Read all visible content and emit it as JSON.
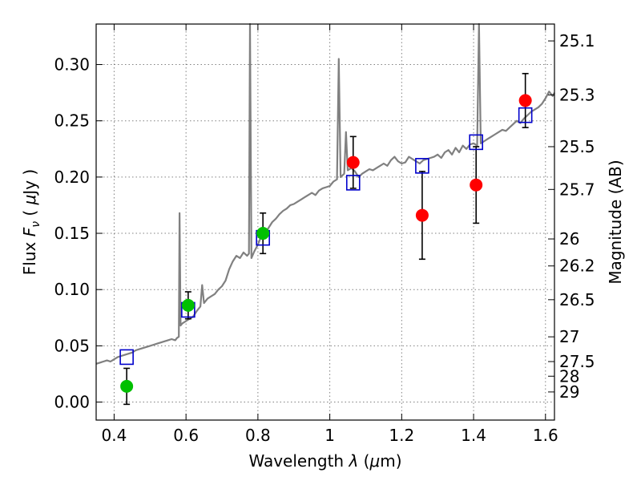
{
  "chart_data": {
    "type": "scatter",
    "title": "",
    "xlabel_prefix": "Wavelength ",
    "xlabel_symbol": "λ",
    "xlabel_unit_open": " (",
    "xlabel_unit_mu": "μ",
    "xlabel_unit_rest": "m)",
    "ylabel_prefix": "Flux  ",
    "ylabel_symbol": "F",
    "ylabel_subscript": "ν",
    "ylabel_unit_open": "  ( ",
    "ylabel_unit_mu": "μ",
    "ylabel_unit_rest": "Jy )",
    "y2label": "Magnitude (AB)",
    "xlim": [
      0.35,
      1.625
    ],
    "ylim": [
      -0.016,
      0.336
    ],
    "grid": true,
    "xticks": [
      0.4,
      0.6,
      0.8,
      1.0,
      1.2,
      1.4,
      1.6
    ],
    "xtick_labels": [
      "0.4",
      "0.6",
      "0.8",
      "1",
      "1.2",
      "1.4",
      "1.6"
    ],
    "yticks": [
      0.0,
      0.05,
      0.1,
      0.15,
      0.2,
      0.25,
      0.3
    ],
    "ytick_labels": [
      "0.00",
      "0.05",
      "0.10",
      "0.15",
      "0.20",
      "0.25",
      "0.30"
    ],
    "y2ticks": [
      {
        "flux": 0.321,
        "label": "25.1"
      },
      {
        "flux": 0.273,
        "label": "25.3"
      },
      {
        "flux": 0.227,
        "label": "25.5"
      },
      {
        "flux": 0.189,
        "label": "25.7"
      },
      {
        "flux": 0.145,
        "label": "26"
      },
      {
        "flux": 0.121,
        "label": "26.2"
      },
      {
        "flux": 0.091,
        "label": "26.5"
      },
      {
        "flux": 0.058,
        "label": "27"
      },
      {
        "flux": 0.036,
        "label": "27.5"
      },
      {
        "flux": 0.023,
        "label": "28"
      },
      {
        "flux": 0.009,
        "label": "29"
      }
    ],
    "colors": {
      "spectrum": "#808080",
      "green_points": "#00c000",
      "red_points": "#ff0000",
      "model_boxes": "#0000cc",
      "errorbars": "#000000",
      "grid": "#808080"
    },
    "series": [
      {
        "marker": "circle",
        "color": "#00c000",
        "points": [
          {
            "x": 0.435,
            "y": 0.014,
            "err": 0.016
          },
          {
            "x": 0.606,
            "y": 0.086,
            "err": 0.012
          },
          {
            "x": 0.814,
            "y": 0.15,
            "err": 0.018
          }
        ]
      },
      {
        "marker": "circle",
        "color": "#ff0000",
        "points": [
          {
            "x": 1.065,
            "y": 0.213,
            "err": 0.023
          },
          {
            "x": 1.257,
            "y": 0.166,
            "err": 0.039
          },
          {
            "x": 1.407,
            "y": 0.193,
            "err": 0.034
          },
          {
            "x": 1.544,
            "y": 0.268,
            "err": 0.024
          }
        ]
      },
      {
        "marker": "square",
        "color": "#0000cc",
        "points": [
          {
            "x": 0.435,
            "y": 0.04
          },
          {
            "x": 0.606,
            "y": 0.082
          },
          {
            "x": 0.814,
            "y": 0.146
          },
          {
            "x": 1.065,
            "y": 0.195
          },
          {
            "x": 1.257,
            "y": 0.21
          },
          {
            "x": 1.407,
            "y": 0.231
          },
          {
            "x": 1.544,
            "y": 0.255
          }
        ]
      },
      {
        "marker": "line",
        "color": "#808080",
        "points": [
          [
            0.35,
            0.034
          ],
          [
            0.36,
            0.035
          ],
          [
            0.37,
            0.036
          ],
          [
            0.38,
            0.037
          ],
          [
            0.39,
            0.036
          ],
          [
            0.4,
            0.038
          ],
          [
            0.41,
            0.04
          ],
          [
            0.42,
            0.041
          ],
          [
            0.43,
            0.042
          ],
          [
            0.44,
            0.043
          ],
          [
            0.45,
            0.044
          ],
          [
            0.46,
            0.046
          ],
          [
            0.47,
            0.047
          ],
          [
            0.48,
            0.048
          ],
          [
            0.49,
            0.049
          ],
          [
            0.5,
            0.05
          ],
          [
            0.51,
            0.051
          ],
          [
            0.52,
            0.052
          ],
          [
            0.53,
            0.053
          ],
          [
            0.54,
            0.054
          ],
          [
            0.55,
            0.055
          ],
          [
            0.56,
            0.056
          ],
          [
            0.57,
            0.055
          ],
          [
            0.575,
            0.057
          ],
          [
            0.58,
            0.058
          ],
          [
            0.582,
            0.168
          ],
          [
            0.585,
            0.068
          ],
          [
            0.59,
            0.07
          ],
          [
            0.6,
            0.072
          ],
          [
            0.61,
            0.074
          ],
          [
            0.62,
            0.076
          ],
          [
            0.63,
            0.081
          ],
          [
            0.64,
            0.085
          ],
          [
            0.645,
            0.104
          ],
          [
            0.65,
            0.088
          ],
          [
            0.66,
            0.092
          ],
          [
            0.67,
            0.094
          ],
          [
            0.68,
            0.096
          ],
          [
            0.69,
            0.1
          ],
          [
            0.7,
            0.103
          ],
          [
            0.71,
            0.108
          ],
          [
            0.72,
            0.118
          ],
          [
            0.73,
            0.125
          ],
          [
            0.74,
            0.13
          ],
          [
            0.75,
            0.128
          ],
          [
            0.76,
            0.133
          ],
          [
            0.77,
            0.13
          ],
          [
            0.775,
            0.132
          ],
          [
            0.778,
            0.34
          ],
          [
            0.782,
            0.128
          ],
          [
            0.79,
            0.134
          ],
          [
            0.8,
            0.14
          ],
          [
            0.81,
            0.148
          ],
          [
            0.82,
            0.15
          ],
          [
            0.83,
            0.155
          ],
          [
            0.84,
            0.16
          ],
          [
            0.85,
            0.163
          ],
          [
            0.86,
            0.167
          ],
          [
            0.87,
            0.17
          ],
          [
            0.88,
            0.172
          ],
          [
            0.89,
            0.175
          ],
          [
            0.9,
            0.176
          ],
          [
            0.91,
            0.178
          ],
          [
            0.92,
            0.18
          ],
          [
            0.93,
            0.182
          ],
          [
            0.94,
            0.184
          ],
          [
            0.95,
            0.186
          ],
          [
            0.96,
            0.184
          ],
          [
            0.97,
            0.188
          ],
          [
            0.98,
            0.19
          ],
          [
            0.99,
            0.191
          ],
          [
            1.0,
            0.192
          ],
          [
            1.01,
            0.196
          ],
          [
            1.02,
            0.198
          ],
          [
            1.025,
            0.305
          ],
          [
            1.03,
            0.2
          ],
          [
            1.04,
            0.203
          ],
          [
            1.045,
            0.24
          ],
          [
            1.05,
            0.206
          ],
          [
            1.06,
            0.208
          ],
          [
            1.07,
            0.205
          ],
          [
            1.08,
            0.2
          ],
          [
            1.09,
            0.203
          ],
          [
            1.1,
            0.205
          ],
          [
            1.11,
            0.207
          ],
          [
            1.12,
            0.206
          ],
          [
            1.13,
            0.208
          ],
          [
            1.14,
            0.21
          ],
          [
            1.15,
            0.212
          ],
          [
            1.16,
            0.21
          ],
          [
            1.17,
            0.215
          ],
          [
            1.18,
            0.218
          ],
          [
            1.19,
            0.214
          ],
          [
            1.2,
            0.212
          ],
          [
            1.21,
            0.213
          ],
          [
            1.22,
            0.218
          ],
          [
            1.23,
            0.216
          ],
          [
            1.24,
            0.214
          ],
          [
            1.25,
            0.212
          ],
          [
            1.26,
            0.215
          ],
          [
            1.27,
            0.216
          ],
          [
            1.28,
            0.217
          ],
          [
            1.29,
            0.218
          ],
          [
            1.3,
            0.22
          ],
          [
            1.31,
            0.217
          ],
          [
            1.32,
            0.222
          ],
          [
            1.33,
            0.224
          ],
          [
            1.34,
            0.22
          ],
          [
            1.35,
            0.226
          ],
          [
            1.36,
            0.222
          ],
          [
            1.37,
            0.228
          ],
          [
            1.38,
            0.225
          ],
          [
            1.39,
            0.229
          ],
          [
            1.4,
            0.23
          ],
          [
            1.41,
            0.228
          ],
          [
            1.415,
            0.34
          ],
          [
            1.42,
            0.23
          ],
          [
            1.43,
            0.232
          ],
          [
            1.44,
            0.234
          ],
          [
            1.45,
            0.236
          ],
          [
            1.46,
            0.238
          ],
          [
            1.47,
            0.24
          ],
          [
            1.48,
            0.242
          ],
          [
            1.49,
            0.241
          ],
          [
            1.5,
            0.244
          ],
          [
            1.51,
            0.247
          ],
          [
            1.52,
            0.25
          ],
          [
            1.53,
            0.248
          ],
          [
            1.54,
            0.252
          ],
          [
            1.55,
            0.255
          ],
          [
            1.56,
            0.258
          ],
          [
            1.57,
            0.26
          ],
          [
            1.58,
            0.262
          ],
          [
            1.59,
            0.265
          ],
          [
            1.6,
            0.27
          ],
          [
            1.61,
            0.276
          ],
          [
            1.62,
            0.272
          ],
          [
            1.625,
            0.275
          ]
        ]
      }
    ]
  }
}
